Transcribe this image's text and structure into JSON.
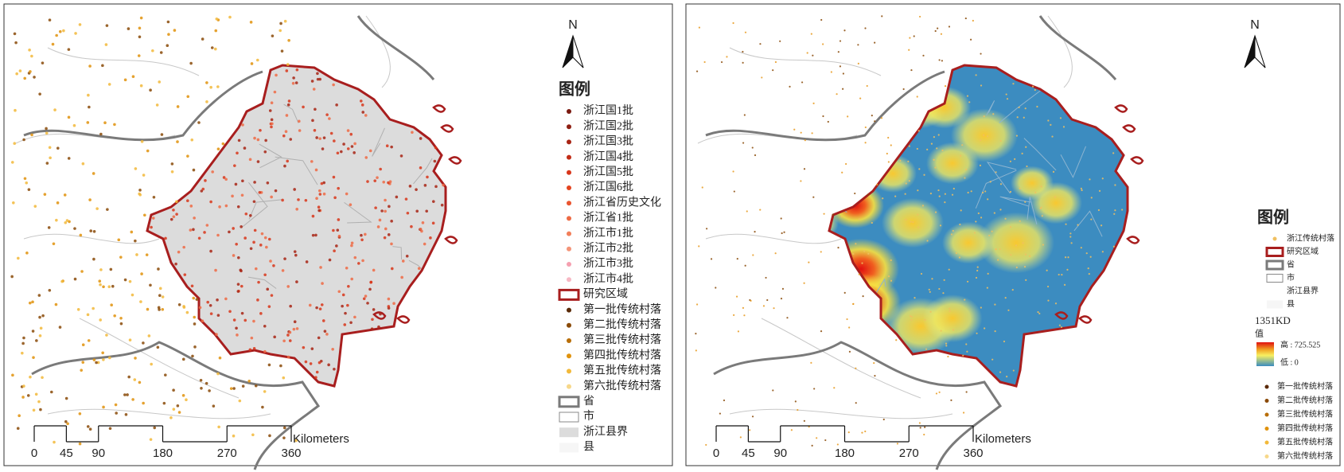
{
  "maps": [
    {
      "north": "N",
      "legend": {
        "title": "图例",
        "items": [
          {
            "label": "浙江国1批",
            "symbol": "dot",
            "color": "#7a1a10"
          },
          {
            "label": "浙江国2批",
            "symbol": "dot",
            "color": "#8e1f12"
          },
          {
            "label": "浙江国3批",
            "symbol": "dot",
            "color": "#a82414"
          },
          {
            "label": "浙江国4批",
            "symbol": "dot",
            "color": "#c22d17"
          },
          {
            "label": "浙江国5批",
            "symbol": "dot",
            "color": "#d8361a"
          },
          {
            "label": "浙江国6批",
            "symbol": "dot",
            "color": "#e4441f"
          },
          {
            "label": "浙江省历史文化",
            "symbol": "dot",
            "color": "#ea5530"
          },
          {
            "label": "浙江省1批",
            "symbol": "dot",
            "color": "#ee6a44"
          },
          {
            "label": "浙江市1批",
            "symbol": "dot",
            "color": "#f27f5a"
          },
          {
            "label": "浙江市2批",
            "symbol": "dot",
            "color": "#f49478"
          },
          {
            "label": "浙江市3批",
            "symbol": "dot",
            "color": "#f5a0b0"
          },
          {
            "label": "浙江市4批",
            "symbol": "dot",
            "color": "#f7b8c4"
          },
          {
            "label": "研究区域",
            "symbol": "box",
            "color": "#a81e1e"
          },
          {
            "label": "第一批传统村落",
            "symbol": "dot",
            "color": "#5a2a08"
          },
          {
            "label": "第二批传统村落",
            "symbol": "dot",
            "color": "#8a4a08"
          },
          {
            "label": "第三批传统村落",
            "symbol": "dot",
            "color": "#b86e08"
          },
          {
            "label": "第四批传统村落",
            "symbol": "dot",
            "color": "#e0920c"
          },
          {
            "label": "第五批传统村落",
            "symbol": "dot",
            "color": "#f2b93a"
          },
          {
            "label": "第六批传统村落",
            "symbol": "dot",
            "color": "#f7d88a"
          },
          {
            "label": "省",
            "symbol": "box",
            "color": "#7a7a7a"
          },
          {
            "label": "市",
            "symbol": "thin",
            "color": "#888888"
          },
          {
            "label": "浙江县界",
            "symbol": "fill",
            "color": "#dcdcdc"
          },
          {
            "label": "县",
            "symbol": "fill",
            "color": "#f6f6f6"
          }
        ]
      },
      "scale": {
        "ticks": [
          0,
          45,
          90,
          180,
          270,
          360
        ],
        "unit": "Kilometers"
      }
    },
    {
      "north": "N",
      "legend": {
        "title": "图例",
        "items": [
          {
            "label": "浙江传统村落",
            "symbol": "dot",
            "color": "#f0c060"
          },
          {
            "label": "研究区域",
            "symbol": "box",
            "color": "#a81e1e"
          },
          {
            "label": "省",
            "symbol": "box",
            "color": "#7a7a7a"
          },
          {
            "label": "市",
            "symbol": "thin",
            "color": "#888888"
          },
          {
            "label": "浙江县界",
            "symbol": "none",
            "color": "#ffffff"
          },
          {
            "label": "县",
            "symbol": "fill",
            "color": "#f6f6f6"
          }
        ],
        "kd": {
          "title": "1351KD",
          "subtitle": "值",
          "high": "高 : 725.525",
          "low": "低 : 0"
        },
        "items2": [
          {
            "label": "第一批传统村落",
            "symbol": "dot",
            "color": "#5a2a08"
          },
          {
            "label": "第二批传统村落",
            "symbol": "dot",
            "color": "#8a4a08"
          },
          {
            "label": "第三批传统村落",
            "symbol": "dot",
            "color": "#b86e08"
          },
          {
            "label": "第四批传统村落",
            "symbol": "dot",
            "color": "#e0920c"
          },
          {
            "label": "第五批传统村落",
            "symbol": "dot",
            "color": "#f2b93a"
          },
          {
            "label": "第六批传统村落",
            "symbol": "dot",
            "color": "#f7d88a"
          }
        ]
      },
      "scale": {
        "ticks": [
          0,
          45,
          90,
          180,
          270,
          360
        ],
        "unit": "Kilometers"
      }
    }
  ]
}
